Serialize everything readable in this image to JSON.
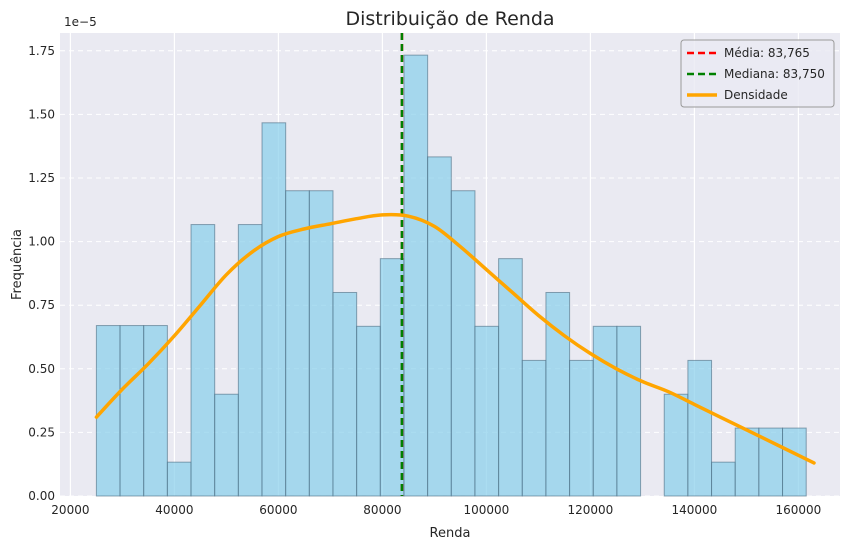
{
  "chart_data": {
    "type": "histogram",
    "title": "Distribuição de Renda",
    "xlabel": "Renda",
    "ylabel": "Frequência",
    "y_scale_label": "1e−5",
    "xlim": [
      18000,
      168000
    ],
    "ylim": [
      0,
      1.82
    ],
    "x_ticks": [
      20000,
      40000,
      60000,
      80000,
      100000,
      120000,
      140000,
      160000
    ],
    "x_tick_labels": [
      "20000",
      "40000",
      "60000",
      "80000",
      "100000",
      "120000",
      "140000",
      "160000"
    ],
    "y_ticks": [
      0,
      0.25,
      0.5,
      0.75,
      1.0,
      1.25,
      1.5,
      1.75
    ],
    "y_tick_labels": [
      "0.00",
      "0.25",
      "0.50",
      "0.75",
      "1.00",
      "1.25",
      "1.50",
      "1.75"
    ],
    "grid": true,
    "legend_position": "top-right",
    "histogram": {
      "name": "",
      "color": "#87ceeb",
      "bins_start": 25000,
      "bin_width": 4550,
      "values": [
        0.67,
        0.67,
        0.67,
        0.133,
        1.067,
        0.4,
        1.067,
        1.467,
        1.2,
        1.2,
        0.8,
        0.667,
        0.933,
        1.733,
        1.333,
        1.2,
        0.667,
        0.933,
        0.533,
        0.8,
        0.533,
        0.667,
        0.667,
        0,
        0.4,
        0.533,
        0.133,
        0.267,
        0.267,
        0.267
      ]
    },
    "lines": [
      {
        "name": "Média: 83,765",
        "type": "vline",
        "x": 83765,
        "color": "#ff0000",
        "dash": true
      },
      {
        "name": "Mediana: 83,750",
        "type": "vline",
        "x": 83750,
        "color": "#008000",
        "dash": true
      }
    ],
    "density": {
      "name": "Densidade",
      "color": "#ffa500",
      "x": [
        25000,
        30000,
        35000,
        40000,
        45000,
        50000,
        55000,
        60000,
        65000,
        70000,
        75000,
        80000,
        85000,
        90000,
        95000,
        100000,
        105000,
        110000,
        115000,
        120000,
        125000,
        130000,
        135000,
        140000,
        145000,
        150000,
        155000,
        160000,
        163000
      ],
      "y": [
        0.31,
        0.42,
        0.52,
        0.63,
        0.75,
        0.87,
        0.96,
        1.02,
        1.05,
        1.07,
        1.09,
        1.105,
        1.1,
        1.06,
        0.98,
        0.89,
        0.8,
        0.71,
        0.63,
        0.56,
        0.5,
        0.45,
        0.41,
        0.36,
        0.31,
        0.26,
        0.21,
        0.16,
        0.13
      ]
    }
  }
}
